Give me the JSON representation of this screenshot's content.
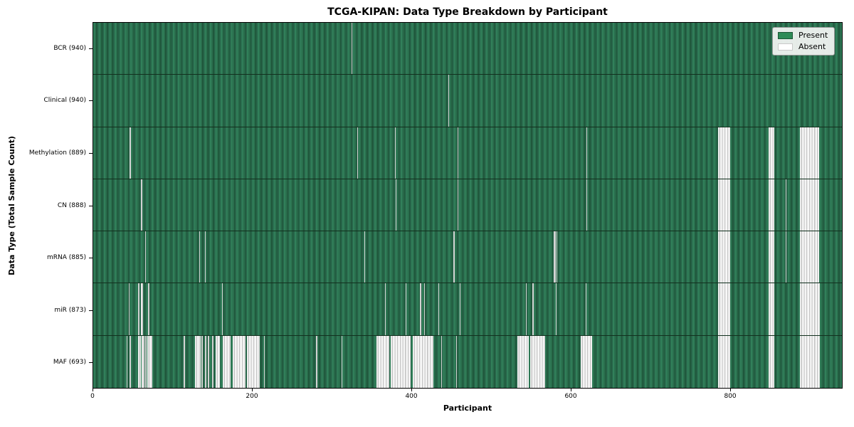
{
  "chart_data": {
    "type": "heatmap",
    "title": "TCGA-KIPAN: Data Type Breakdown by Participant",
    "xlabel": "Participant",
    "ylabel": "Data Type (Total Sample Count)",
    "x_ticks": [
      0,
      200,
      400,
      600,
      800
    ],
    "n_participants": 941,
    "grid": false,
    "legend_position": "upper right",
    "colors": {
      "present": "#2e8b57",
      "absent": "#ffffff"
    },
    "legend": [
      {
        "label": "Present",
        "key": "present"
      },
      {
        "label": "Absent",
        "key": "absent"
      }
    ],
    "rows": [
      {
        "label": "BCR (940)",
        "data_type": "BCR",
        "sample_count": 940,
        "absent_ranges": [
          [
            325,
            1
          ]
        ]
      },
      {
        "label": "Clinical (940)",
        "data_type": "Clinical",
        "sample_count": 940,
        "absent_ranges": [
          [
            446,
            1
          ]
        ]
      },
      {
        "label": "Methylation (889)",
        "data_type": "Methylation",
        "sample_count": 889,
        "absent_ranges": [
          [
            46,
            1
          ],
          [
            332,
            1
          ],
          [
            379,
            1
          ],
          [
            458,
            1
          ],
          [
            620,
            1
          ],
          [
            785,
            16
          ],
          [
            849,
            7
          ],
          [
            888,
            24
          ]
        ]
      },
      {
        "label": "CN (888)",
        "data_type": "CN",
        "sample_count": 888,
        "absent_ranges": [
          [
            60,
            2
          ],
          [
            380,
            1
          ],
          [
            458,
            1
          ],
          [
            620,
            1
          ],
          [
            785,
            16
          ],
          [
            849,
            7
          ],
          [
            870,
            1
          ],
          [
            888,
            24
          ]
        ]
      },
      {
        "label": "mRNA (885)",
        "data_type": "mRNA",
        "sample_count": 885,
        "absent_ranges": [
          [
            65,
            1
          ],
          [
            133,
            1
          ],
          [
            140,
            1
          ],
          [
            341,
            1
          ],
          [
            453,
            1
          ],
          [
            579,
            2
          ],
          [
            582,
            1
          ],
          [
            785,
            16
          ],
          [
            849,
            7
          ],
          [
            870,
            1
          ],
          [
            888,
            24
          ]
        ]
      },
      {
        "label": "miR (873)",
        "data_type": "miR",
        "sample_count": 873,
        "absent_ranges": [
          [
            45,
            1
          ],
          [
            56,
            2
          ],
          [
            60,
            3
          ],
          [
            69,
            2
          ],
          [
            162,
            1
          ],
          [
            367,
            1
          ],
          [
            393,
            1
          ],
          [
            411,
            1
          ],
          [
            416,
            1
          ],
          [
            434,
            1
          ],
          [
            461,
            1
          ],
          [
            544,
            1
          ],
          [
            552,
            2
          ],
          [
            581,
            1
          ],
          [
            619,
            1
          ],
          [
            785,
            16
          ],
          [
            849,
            7
          ],
          [
            888,
            25
          ]
        ]
      },
      {
        "label": "MAF (693)",
        "data_type": "MAF",
        "sample_count": 693,
        "absent_ranges": [
          [
            42,
            1
          ],
          [
            46,
            1
          ],
          [
            56,
            4
          ],
          [
            61,
            3
          ],
          [
            65,
            2
          ],
          [
            68,
            6
          ],
          [
            114,
            1
          ],
          [
            128,
            7
          ],
          [
            136,
            2
          ],
          [
            140,
            2
          ],
          [
            144,
            2
          ],
          [
            149,
            2
          ],
          [
            154,
            5
          ],
          [
            163,
            10
          ],
          [
            175,
            16
          ],
          [
            193,
            16
          ],
          [
            215,
            1
          ],
          [
            280,
            2
          ],
          [
            312,
            1
          ],
          [
            356,
            16
          ],
          [
            374,
            25
          ],
          [
            402,
            26
          ],
          [
            437,
            1
          ],
          [
            456,
            1
          ],
          [
            533,
            14
          ],
          [
            549,
            19
          ],
          [
            613,
            14
          ],
          [
            785,
            16
          ],
          [
            849,
            7
          ],
          [
            888,
            25
          ]
        ]
      }
    ]
  }
}
